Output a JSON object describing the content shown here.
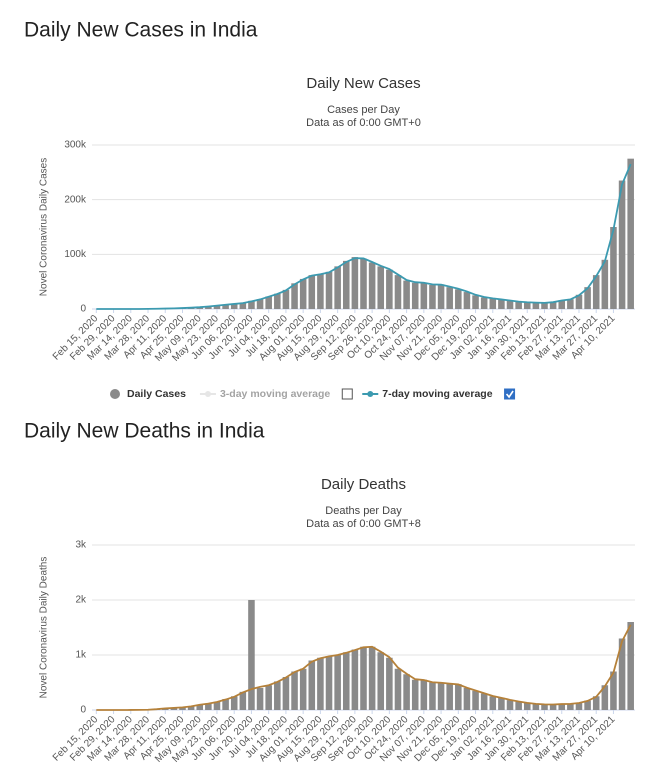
{
  "headings": [
    "Daily New Cases in India",
    "Daily New Deaths in India"
  ],
  "chart_data": [
    {
      "type": "bar",
      "title": "Daily New Cases",
      "subtitle": [
        "Cases per Day",
        "Data as of 0:00 GMT+0"
      ],
      "y_label": "Novel Coronavirus Daily Cases",
      "categories": [
        "Feb 15, 2020",
        null,
        "Feb 29, 2020",
        null,
        "Mar 14, 2020",
        null,
        "Mar 28, 2020",
        null,
        "Apr 11, 2020",
        null,
        "Apr 25, 2020",
        null,
        "May 09, 2020",
        null,
        "May 23, 2020",
        null,
        "Jun 06, 2020",
        null,
        "Jun 20, 2020",
        null,
        "Jul 04, 2020",
        null,
        "Jul 18, 2020",
        null,
        "Aug 01, 2020",
        null,
        "Aug 15, 2020",
        null,
        "Aug 29, 2020",
        null,
        "Sep 12, 2020",
        null,
        "Sep 26, 2020",
        null,
        "Oct 10, 2020",
        null,
        "Oct 24, 2020",
        null,
        "Nov 07, 2020",
        null,
        "Nov 21, 2020",
        null,
        "Dec 05, 2020",
        null,
        "Dec 19, 2020",
        null,
        "Jan 02, 2021",
        null,
        "Jan 16, 2021",
        null,
        "Jan 30, 2021",
        null,
        "Feb 13, 2021",
        null,
        "Feb 27, 2021",
        null,
        "Mar 13, 2021",
        null,
        "Mar 27, 2021",
        null,
        "Apr 10, 2021",
        null,
        null
      ],
      "series": [
        {
          "name": "Daily Cases",
          "kind": "bar",
          "color": "#8a8a8a",
          "visible": true,
          "values": [
            0,
            0,
            3,
            10,
            20,
            80,
            200,
            600,
            900,
            1300,
            1800,
            2500,
            3500,
            4800,
            6500,
            8000,
            9500,
            11000,
            15000,
            18000,
            23000,
            28000,
            35000,
            47000,
            55000,
            62000,
            64000,
            68000,
            78000,
            88000,
            95000,
            92000,
            85000,
            78000,
            72000,
            62000,
            52000,
            48000,
            48000,
            44000,
            45000,
            40000,
            36000,
            31000,
            25000,
            21000,
            19000,
            17000,
            15000,
            13000,
            12000,
            11500,
            11000,
            13000,
            16000,
            18000,
            26000,
            40000,
            62000,
            90000,
            150000,
            235000,
            275000
          ]
        },
        {
          "name": "3-day moving average",
          "kind": "line",
          "color": "#c8c8c8",
          "visible": false,
          "values": [
            0,
            0,
            2,
            8,
            18,
            70,
            180,
            550,
            880,
            1250,
            1750,
            2450,
            3400,
            4700,
            6400,
            7900,
            9400,
            10900,
            14500,
            17800,
            22800,
            27800,
            34500,
            46000,
            54500,
            61500,
            64000,
            67500,
            77000,
            87000,
            94000,
            92500,
            85500,
            78500,
            72500,
            62500,
            52500,
            48500,
            48000,
            44500,
            45000,
            40500,
            36500,
            31500,
            25500,
            21500,
            19200,
            17200,
            15200,
            13200,
            12100,
            11600,
            11100,
            12800,
            15800,
            17800,
            25500,
            39000,
            61000,
            89000,
            148000,
            232000,
            272000
          ]
        },
        {
          "name": "7-day moving average",
          "kind": "line",
          "color": "#3c9ab0",
          "visible": true,
          "values": [
            0,
            0,
            2,
            7,
            16,
            60,
            160,
            500,
            850,
            1200,
            1700,
            2400,
            3300,
            4600,
            6200,
            7800,
            9300,
            10700,
            14000,
            17500,
            22500,
            27500,
            34000,
            45000,
            54000,
            61000,
            63500,
            67000,
            76000,
            86000,
            93000,
            92500,
            86000,
            79000,
            73000,
            63000,
            53000,
            49000,
            48000,
            45000,
            44500,
            41000,
            37000,
            32000,
            26000,
            22000,
            19500,
            17500,
            15500,
            13500,
            12300,
            11700,
            11200,
            12500,
            15500,
            17500,
            25000,
            38000,
            60000,
            87000,
            145000,
            228000,
            265000
          ]
        }
      ],
      "ylim": [
        0,
        300000
      ],
      "yticks": [
        0,
        {
          "value": 100000,
          "label": "100k"
        },
        {
          "value": 200000,
          "label": "200k"
        },
        {
          "value": 300000,
          "label": "300k"
        }
      ],
      "grid": true,
      "legend": "bottom"
    },
    {
      "type": "bar",
      "title": "Daily Deaths",
      "subtitle": [
        "Deaths per Day",
        "Data as of 0:00 GMT+8"
      ],
      "y_label": "Novel Coronavirus Daily Deaths",
      "categories": [
        "Feb 15, 2020",
        null,
        "Feb 29, 2020",
        null,
        "Mar 14, 2020",
        null,
        "Mar 28, 2020",
        null,
        "Apr 11, 2020",
        null,
        "Apr 25, 2020",
        null,
        "May 09, 2020",
        null,
        "May 23, 2020",
        null,
        "Jun 06, 2020",
        null,
        "Jun 20, 2020",
        null,
        "Jul 04, 2020",
        null,
        "Jul 18, 2020",
        null,
        "Aug 01, 2020",
        null,
        "Aug 15, 2020",
        null,
        "Aug 29, 2020",
        null,
        "Sep 12, 2020",
        null,
        "Sep 26, 2020",
        null,
        "Oct 10, 2020",
        null,
        "Oct 24, 2020",
        null,
        "Nov 07, 2020",
        null,
        "Nov 21, 2020",
        null,
        "Dec 05, 2020",
        null,
        "Dec 19, 2020",
        null,
        "Jan 02, 2021",
        null,
        "Jan 16, 2021",
        null,
        "Jan 30, 2021",
        null,
        "Feb 13, 2021",
        null,
        "Feb 27, 2021",
        null,
        "Mar 13, 2021",
        null,
        "Mar 27, 2021",
        null,
        "Apr 10, 2021",
        null,
        null
      ],
      "series": [
        {
          "name": "Daily Deaths",
          "kind": "bar",
          "color": "#8a8a8a",
          "visible": true,
          "values": [
            0,
            0,
            0,
            0,
            1,
            3,
            5,
            20,
            35,
            40,
            50,
            70,
            100,
            120,
            150,
            200,
            250,
            330,
            2000,
            400,
            450,
            520,
            600,
            700,
            750,
            900,
            950,
            980,
            1000,
            1050,
            1100,
            1150,
            1150,
            1050,
            950,
            750,
            650,
            550,
            550,
            500,
            500,
            480,
            470,
            400,
            350,
            300,
            250,
            220,
            180,
            150,
            130,
            110,
            100,
            100,
            110,
            110,
            130,
            170,
            250,
            450,
            700,
            1300,
            1600
          ]
        },
        {
          "name": "7-day moving average",
          "kind": "line",
          "color": "#b5813a",
          "visible": true,
          "values": [
            0,
            0,
            0,
            0,
            1,
            2,
            4,
            15,
            30,
            38,
            48,
            65,
            95,
            115,
            145,
            190,
            240,
            320,
            380,
            420,
            450,
            510,
            590,
            690,
            750,
            880,
            940,
            975,
            1000,
            1040,
            1090,
            1140,
            1150,
            1060,
            960,
            770,
            660,
            560,
            545,
            505,
            495,
            480,
            465,
            405,
            355,
            305,
            255,
            220,
            185,
            155,
            130,
            112,
            102,
            100,
            108,
            112,
            128,
            165,
            240,
            430,
            680,
            1250,
            1550
          ]
        }
      ],
      "ylim": [
        0,
        3000
      ],
      "yticks": [
        0,
        {
          "value": 1000,
          "label": "1k"
        },
        {
          "value": 2000,
          "label": "2k"
        },
        {
          "value": 3000,
          "label": "3k"
        }
      ],
      "grid": true,
      "legend": "none"
    }
  ]
}
